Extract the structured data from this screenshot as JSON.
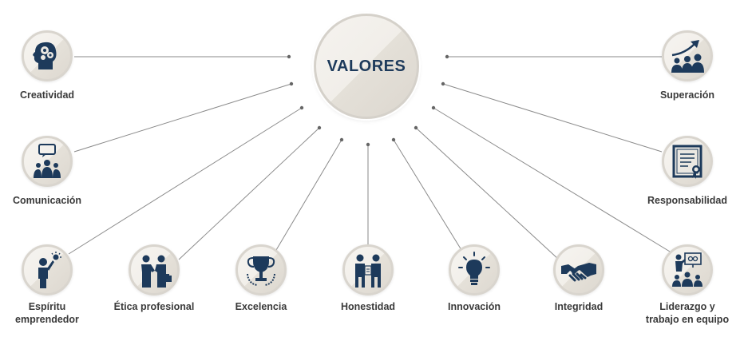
{
  "center": {
    "label": "VALORES"
  },
  "values": [
    {
      "id": "creatividad",
      "label": "Creatividad",
      "icon": "head-gears-icon"
    },
    {
      "id": "comunicacion",
      "label": "Comunicación",
      "icon": "people-speech-bubble-icon"
    },
    {
      "id": "espiritu",
      "label": "Espíritu\nemprendedor",
      "icon": "person-lightbulb-icon"
    },
    {
      "id": "etica",
      "label": "Ética profesional",
      "icon": "handshake-people-icon"
    },
    {
      "id": "excelencia",
      "label": "Excelencia",
      "icon": "trophy-icon"
    },
    {
      "id": "honestidad",
      "label": "Honestidad",
      "icon": "two-businessmen-icon"
    },
    {
      "id": "innovacion",
      "label": "Innovación",
      "icon": "lightbulb-icon"
    },
    {
      "id": "integridad",
      "label": "Integridad",
      "icon": "handshake-icon"
    },
    {
      "id": "liderazgo",
      "label": "Liderazgo y\ntrabajo en equipo",
      "icon": "team-presentation-icon"
    },
    {
      "id": "responsabilidad",
      "label": "Responsabilidad",
      "icon": "certificate-icon"
    },
    {
      "id": "superacion",
      "label": "Superación",
      "icon": "group-growth-arrow-icon"
    }
  ],
  "colors": {
    "icon": "#1d3a5b",
    "line": "#8a8a8a",
    "dot": "#666666",
    "label": "#3a3a3a"
  }
}
